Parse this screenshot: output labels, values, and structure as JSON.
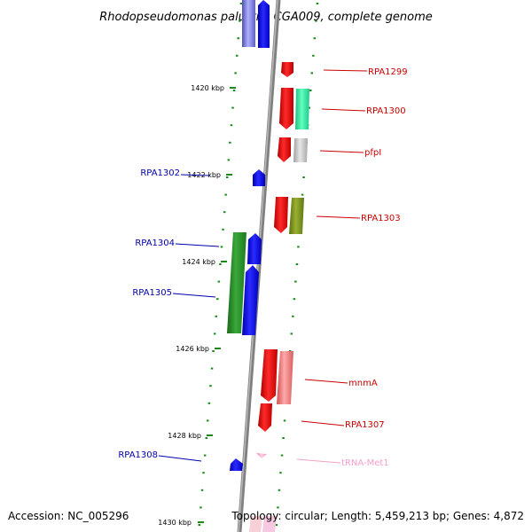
{
  "title": "Rhodopseudomonas palustris CGA009, complete genome",
  "footer": {
    "accession": "Accession: NC_005296",
    "summary": "Topology: circular; Length: 5,459,213 bp; Genes: 4,872"
  },
  "kbp_ticks": [
    {
      "label": "1420 kbp"
    },
    {
      "label": "1422 kbp"
    },
    {
      "label": "1424 kbp"
    },
    {
      "label": "1426 kbp"
    },
    {
      "label": "1428 kbp"
    },
    {
      "label": "1430 kbp"
    }
  ],
  "genes_left": [
    {
      "label": "RPA1302",
      "color": "#0000aa"
    },
    {
      "label": "RPA1304",
      "color": "#0000aa"
    },
    {
      "label": "RPA1305",
      "color": "#0000aa"
    },
    {
      "label": "RPA1308",
      "color": "#0000aa"
    }
  ],
  "genes_right": [
    {
      "label": "RPA1299",
      "color": "#cc0000"
    },
    {
      "label": "RPA1300",
      "color": "#cc0000"
    },
    {
      "label": "pfpI",
      "color": "#cc0000"
    },
    {
      "label": "RPA1303",
      "color": "#cc0000"
    },
    {
      "label": "mnmA",
      "color": "#cc0000"
    },
    {
      "label": "RPA1307",
      "color": "#cc0000"
    },
    {
      "label": "tRNA-Met1",
      "color": "#f4a0c8"
    }
  ],
  "colors": {
    "forward_cds": "#e00000",
    "reverse_cds": "#0000ee",
    "backbone": "#808080",
    "tick": "#1a8a1a",
    "trna": "#f4a6c8"
  }
}
